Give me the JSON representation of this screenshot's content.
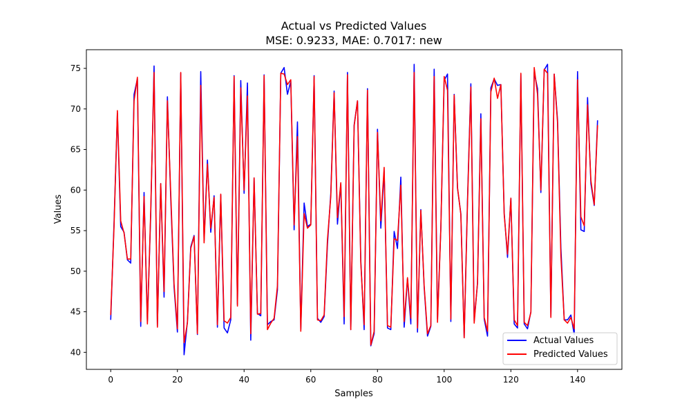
{
  "chart_data": {
    "type": "line",
    "title": "Actual vs Predicted Values",
    "subtitle": "MSE: 0.9233, MAE: 0.7017: new",
    "xlabel": "Samples",
    "ylabel": "Values",
    "xlim": [
      -7.3,
      153.3
    ],
    "ylim": [
      37.9,
      77.3
    ],
    "xticks": [
      0,
      20,
      40,
      60,
      80,
      100,
      120,
      140
    ],
    "yticks": [
      40,
      45,
      50,
      55,
      60,
      65,
      70,
      75
    ],
    "grid": false,
    "legend_position": "lower-right",
    "x": [
      0,
      1,
      2,
      3,
      4,
      5,
      6,
      7,
      8,
      9,
      10,
      11,
      12,
      13,
      14,
      15,
      16,
      17,
      18,
      19,
      20,
      21,
      22,
      23,
      24,
      25,
      26,
      27,
      28,
      29,
      30,
      31,
      32,
      33,
      34,
      35,
      36,
      37,
      38,
      39,
      40,
      41,
      42,
      43,
      44,
      45,
      46,
      47,
      48,
      49,
      50,
      51,
      52,
      53,
      54,
      55,
      56,
      57,
      58,
      59,
      60,
      61,
      62,
      63,
      64,
      65,
      66,
      67,
      68,
      69,
      70,
      71,
      72,
      73,
      74,
      75,
      76,
      77,
      78,
      79,
      80,
      81,
      82,
      83,
      84,
      85,
      86,
      87,
      88,
      89,
      90,
      91,
      92,
      93,
      94,
      95,
      96,
      97,
      98,
      99,
      100,
      101,
      102,
      103,
      104,
      105,
      106,
      107,
      108,
      109,
      110,
      111,
      112,
      113,
      114,
      115,
      116,
      117,
      118,
      119,
      120,
      121,
      122,
      123,
      124,
      125,
      126,
      127,
      128,
      129,
      130,
      131,
      132,
      133,
      134,
      135,
      136,
      137,
      138,
      139,
      140,
      141,
      142,
      143,
      144,
      145,
      146
    ],
    "series": [
      {
        "name": "Actual Values",
        "color": "#0000ff",
        "values": [
          44.0,
          56.0,
          69.5,
          55.5,
          54.8,
          51.4,
          51.0,
          71.8,
          73.7,
          43.2,
          59.7,
          43.8,
          57.0,
          75.3,
          43.2,
          60.8,
          46.8,
          71.5,
          59.0,
          48.0,
          42.5,
          74.4,
          39.7,
          43.8,
          53.0,
          54.4,
          42.2,
          74.6,
          53.8,
          63.7,
          54.8,
          59.3,
          43.1,
          59.4,
          43.0,
          42.4,
          44.0,
          74.1,
          45.9,
          73.5,
          59.6,
          73.2,
          41.5,
          61.5,
          44.8,
          44.5,
          74.2,
          43.4,
          43.8,
          44.0,
          47.7,
          74.4,
          75.1,
          71.8,
          73.4,
          55.1,
          68.4,
          42.8,
          58.4,
          55.5,
          55.8,
          74.1,
          44.2,
          43.7,
          44.4,
          53.3,
          59.6,
          72.2,
          55.8,
          60.8,
          43.5,
          74.5,
          42.8,
          68.0,
          71.0,
          51.3,
          42.8,
          72.5,
          40.8,
          42.3,
          67.5,
          55.3,
          62.4,
          43.0,
          42.8,
          54.9,
          52.8,
          61.6,
          43.1,
          49.1,
          43.5,
          75.5,
          42.5,
          57.6,
          48.0,
          42.0,
          43.2,
          74.9,
          44.1,
          55.3,
          73.5,
          74.3,
          43.8,
          71.8,
          60.2,
          57.1,
          41.8,
          58.8,
          73.1,
          43.9,
          48.5,
          69.4,
          44.1,
          42.0,
          72.6,
          73.7,
          72.9,
          73.0,
          57.2,
          51.7,
          59.0,
          43.5,
          43.0,
          74.3,
          43.5,
          42.9,
          45.0,
          74.5,
          72.5,
          59.7,
          74.8,
          75.5,
          44.4,
          74.3,
          68.6,
          52.9,
          44.0,
          44.0,
          44.6,
          42.2,
          74.6,
          55.1,
          54.9,
          71.4,
          60.8,
          58.1,
          68.6
        ]
      },
      {
        "name": "Predicted Values",
        "color": "#ff0000",
        "values": [
          44.6,
          55.5,
          69.8,
          56.2,
          54.7,
          51.5,
          51.5,
          71.0,
          73.9,
          43.8,
          59.2,
          43.5,
          57.5,
          74.5,
          43.1,
          60.8,
          47.5,
          71.0,
          59.6,
          48.4,
          42.9,
          74.5,
          41.2,
          43.6,
          52.8,
          54.3,
          42.3,
          72.9,
          53.5,
          63.2,
          55.3,
          59.1,
          43.4,
          59.5,
          43.9,
          43.6,
          44.3,
          74.0,
          45.7,
          72.6,
          60.0,
          71.6,
          42.3,
          61.5,
          44.7,
          44.8,
          74.1,
          42.8,
          43.6,
          44.2,
          48.2,
          74.4,
          74.3,
          73.0,
          73.6,
          55.7,
          66.6,
          42.6,
          57.1,
          55.3,
          55.7,
          74.0,
          44.0,
          43.9,
          44.6,
          53.9,
          59.2,
          72.0,
          56.6,
          60.9,
          44.4,
          74.2,
          42.8,
          67.9,
          71.0,
          51.0,
          43.4,
          72.3,
          40.9,
          42.6,
          67.1,
          56.2,
          62.8,
          43.3,
          43.1,
          54.0,
          53.8,
          60.6,
          43.8,
          49.2,
          44.2,
          74.5,
          43.0,
          57.5,
          48.2,
          42.3,
          43.3,
          74.0,
          43.7,
          55.2,
          74.0,
          72.3,
          44.1,
          71.7,
          60.3,
          57.0,
          41.8,
          58.4,
          72.7,
          43.6,
          48.6,
          68.8,
          44.3,
          42.6,
          72.1,
          73.8,
          71.3,
          73.0,
          57.0,
          52.1,
          59.0,
          44.0,
          43.3,
          74.4,
          43.7,
          43.3,
          44.9,
          75.1,
          71.8,
          60.0,
          74.9,
          74.4,
          44.3,
          74.3,
          68.3,
          51.9,
          44.0,
          43.6,
          44.3,
          42.9,
          73.6,
          56.7,
          55.6,
          70.5,
          61.2,
          58.2,
          68.0
        ]
      }
    ]
  }
}
